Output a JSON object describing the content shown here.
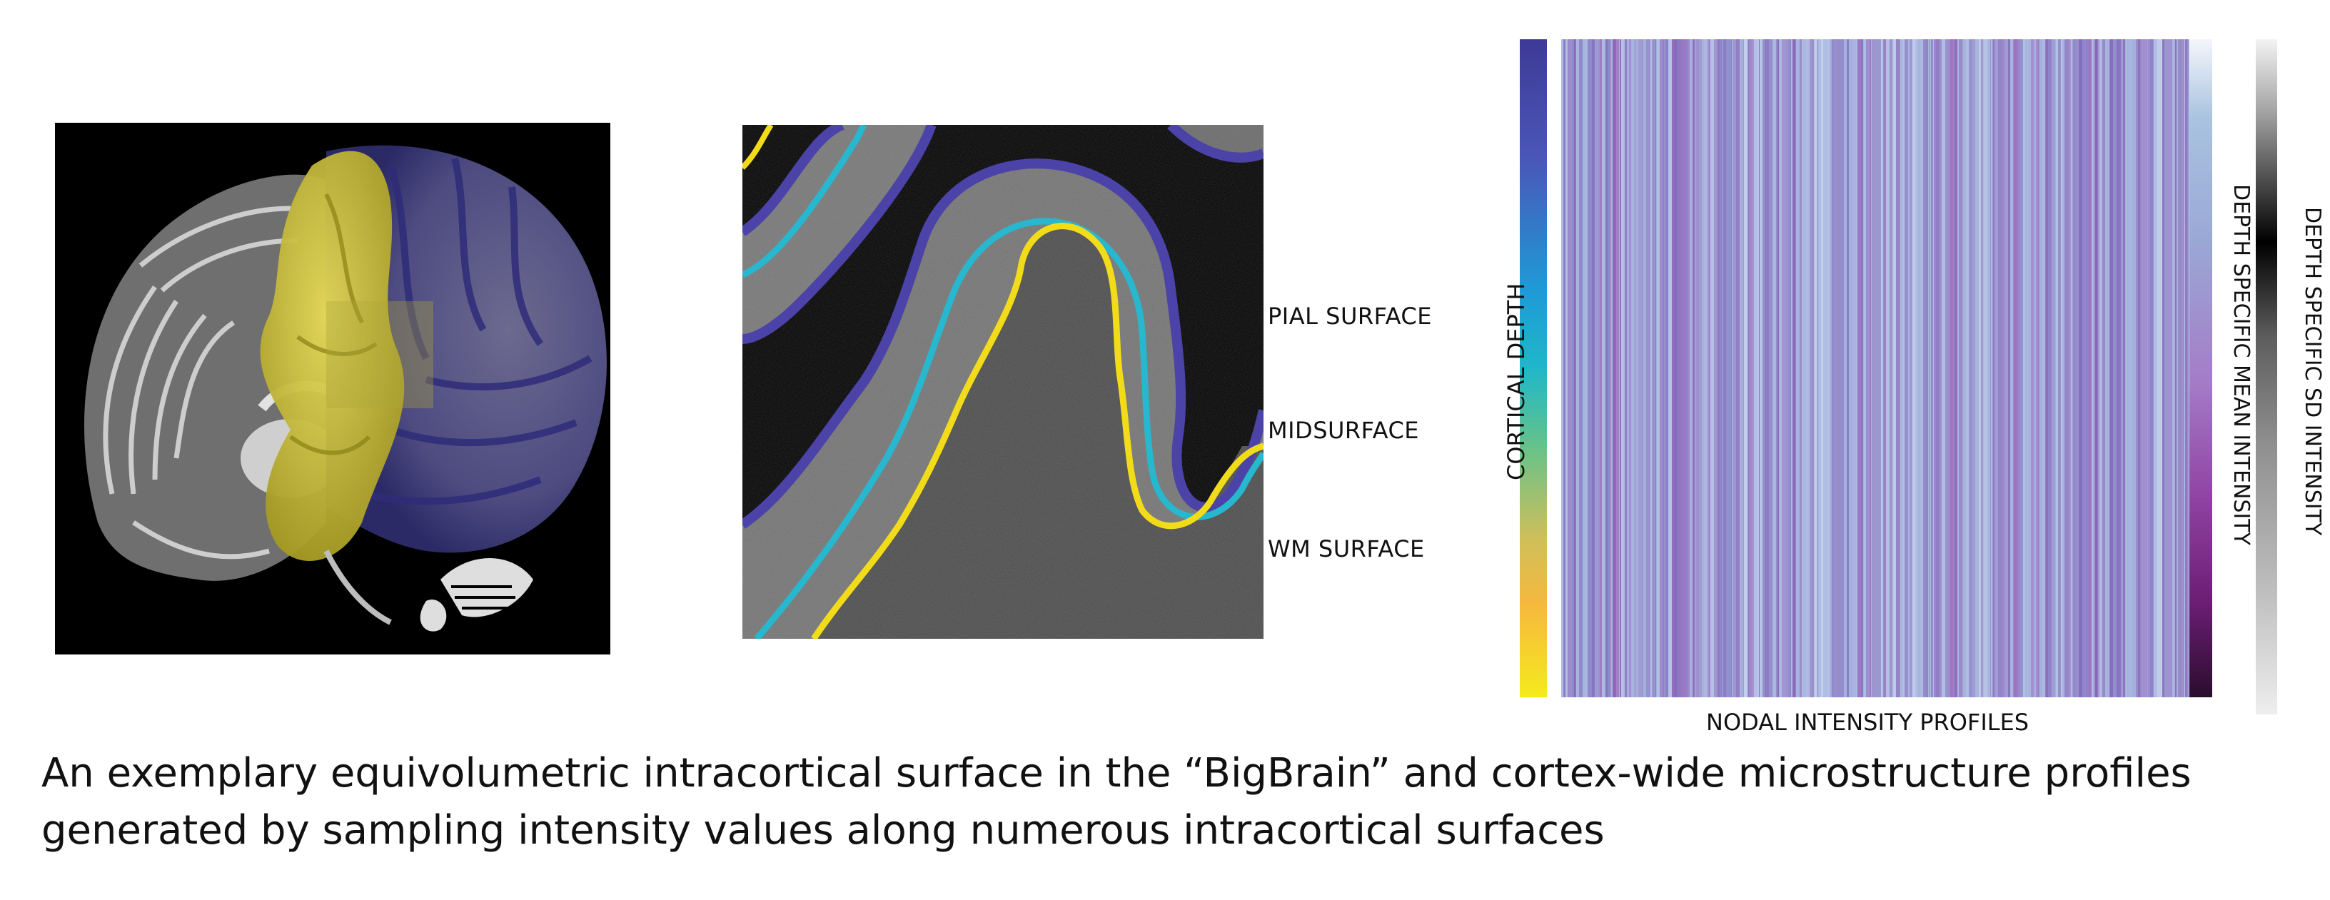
{
  "labels": {
    "pial_surface": "PIAL SURFACE",
    "midsurface": "MIDSURFACE",
    "wm_surface": "WM SURFACE",
    "cortical_depth": "CORTICAL DEPTH",
    "nodal_intensity_profiles": "NODAL INTENSITY PROFILES",
    "depth_mean_intensity": "DEPTH SPECIFIC MEAN INTENSITY",
    "depth_sd_intensity": "DEPTH SPECIFIC SD INTENSITY"
  },
  "caption": {
    "line1": "An exemplary equivolumetric intracortical surface in the “BigBrain” and cortex-wide microstructure profiles",
    "line2": "generated by sampling intensity values along numerous intracortical surfaces"
  },
  "colors": {
    "pial": "#4b43a8",
    "midsurface": "#27b8cf",
    "wm": "#f2dc1a",
    "highlight_region": "#c8bf3a",
    "background_black": "#000000"
  }
}
